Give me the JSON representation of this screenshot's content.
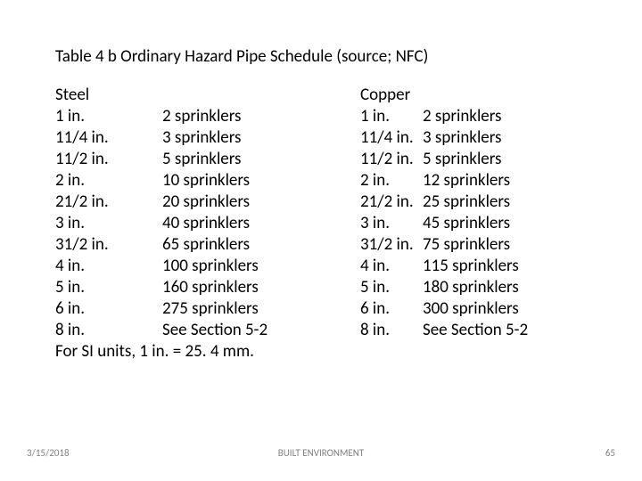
{
  "title": "Table 4 b  Ordinary Hazard Pipe Schedule (source; NFC)",
  "steel": {
    "header": "Steel",
    "rows": [
      {
        "size": "1 in.",
        "sprinklers": "2 sprinklers"
      },
      {
        "size": "11/4 in.",
        "sprinklers": "3 sprinklers"
      },
      {
        "size": "11/2 in.",
        "sprinklers": "5 sprinklers"
      },
      {
        "size": "2 in.",
        "sprinklers": "10 sprinklers"
      },
      {
        "size": "21/2 in.",
        "sprinklers": "20 sprinklers"
      },
      {
        "size": "3 in.",
        "sprinklers": "40 sprinklers"
      },
      {
        "size": "31/2 in.",
        "sprinklers": "65 sprinklers"
      },
      {
        "size": "4 in.",
        "sprinklers": "100 sprinklers"
      },
      {
        "size": "5 in.",
        "sprinklers": "160 sprinklers"
      },
      {
        "size": "6 in.",
        "sprinklers": "275 sprinklers"
      },
      {
        "size": "8 in.",
        "sprinklers": "See Section 5-2"
      }
    ]
  },
  "copper": {
    "header": "Copper",
    "rows": [
      {
        "size": "1 in.",
        "sprinklers": "2 sprinklers"
      },
      {
        "size": "11/4 in.",
        "sprinklers": "3 sprinklers"
      },
      {
        "size": "11/2 in.",
        "sprinklers": "5 sprinklers"
      },
      {
        "size": "2 in.",
        "sprinklers": "12 sprinklers"
      },
      {
        "size": "21/2 in.",
        "sprinklers": "25 sprinklers"
      },
      {
        "size": "3 in.",
        "sprinklers": "45 sprinklers"
      },
      {
        "size": "31/2 in.",
        "sprinklers": "75 sprinklers"
      },
      {
        "size": "4 in.",
        "sprinklers": "115 sprinklers"
      },
      {
        "size": "5 in.",
        "sprinklers": "180 sprinklers"
      },
      {
        "size": "6 in.",
        "sprinklers": "300 sprinklers"
      },
      {
        "size": "8 in.",
        "sprinklers": "See Section 5-2"
      }
    ]
  },
  "si_note": "For SI units, 1 in. = 25. 4 mm.",
  "footer": {
    "date": "3/15/2018",
    "center": "BUILT ENVIRONMENT",
    "page": "65"
  }
}
